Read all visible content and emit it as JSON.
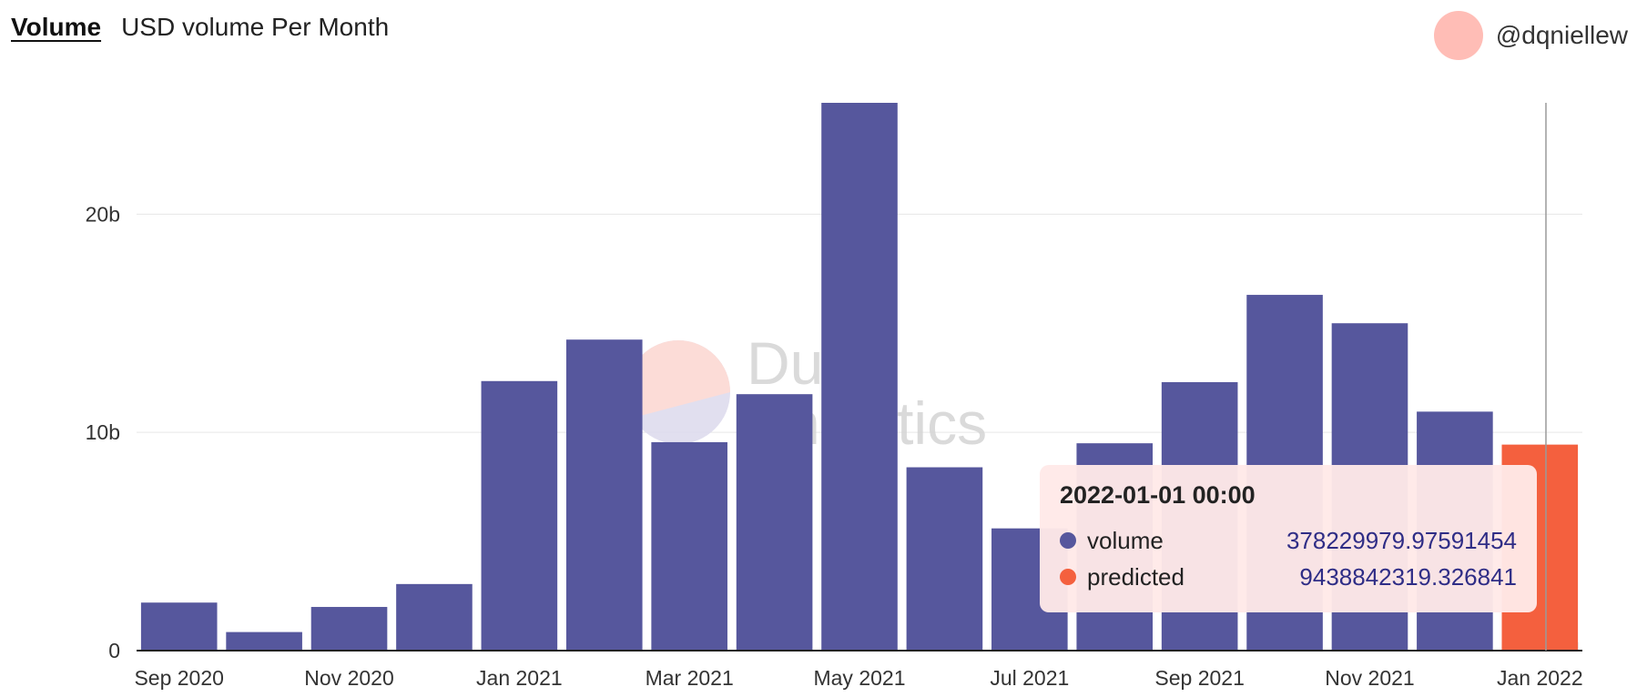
{
  "header": {
    "tab_label": "Volume",
    "subtitle": "USD volume Per Month"
  },
  "author": {
    "handle": "@dqniellew"
  },
  "watermark": {
    "line1": "Dune",
    "line2": "Analytics"
  },
  "colors": {
    "volume": "#56579d",
    "predicted": "#f4603e",
    "grid": "#e6e6e6",
    "tooltip_bg": "#ffe9e8",
    "tooltip_value": "#2f2d86"
  },
  "chart_data": {
    "type": "bar",
    "title": "USD volume Per Month",
    "categories": [
      "2020-09",
      "2020-10",
      "2020-11",
      "2020-12",
      "2021-01",
      "2021-02",
      "2021-03",
      "2021-04",
      "2021-05",
      "2021-06",
      "2021-07",
      "2021-08",
      "2021-09",
      "2021-10",
      "2021-11",
      "2021-12",
      "2022-01"
    ],
    "series": [
      {
        "name": "volume",
        "color": "#56579d",
        "values": [
          2200000000.0,
          850000000.0,
          2000000000.0,
          3050000000.0,
          12350000000.0,
          14250000000.0,
          9550000000.0,
          11750000000.0,
          25100000000.0,
          8400000000.0,
          5600000000.0,
          9500000000.0,
          12300000000.0,
          16300000000.0,
          15000000000.0,
          10950000000.0,
          378229979.97591454
        ]
      },
      {
        "name": "predicted",
        "color": "#f4603e",
        "values": [
          null,
          null,
          null,
          null,
          null,
          null,
          null,
          null,
          null,
          null,
          null,
          null,
          null,
          null,
          null,
          null,
          9438842319.326841
        ]
      }
    ],
    "x_tick_labels": [
      {
        "index": 0,
        "label": "Sep 2020"
      },
      {
        "index": 2,
        "label": "Nov 2020"
      },
      {
        "index": 4,
        "label": "Jan 2021"
      },
      {
        "index": 6,
        "label": "Mar 2021"
      },
      {
        "index": 8,
        "label": "May 2021"
      },
      {
        "index": 10,
        "label": "Jul 2021"
      },
      {
        "index": 12,
        "label": "Sep 2021"
      },
      {
        "index": 14,
        "label": "Nov 2021"
      },
      {
        "index": 16,
        "label": "Jan 2022"
      }
    ],
    "y_ticks": [
      {
        "value": 0,
        "label": "0"
      },
      {
        "value": 10000000000,
        "label": "10b"
      },
      {
        "value": 20000000000,
        "label": "20b"
      }
    ],
    "ylim": [
      0,
      25100000000
    ],
    "grid": true,
    "legend": "none",
    "hover_index": 16
  },
  "tooltip": {
    "title": "2022-01-01 00:00",
    "rows": [
      {
        "name": "volume",
        "value": "378229979.97591454"
      },
      {
        "name": "predicted",
        "value": "9438842319.326841"
      }
    ]
  }
}
